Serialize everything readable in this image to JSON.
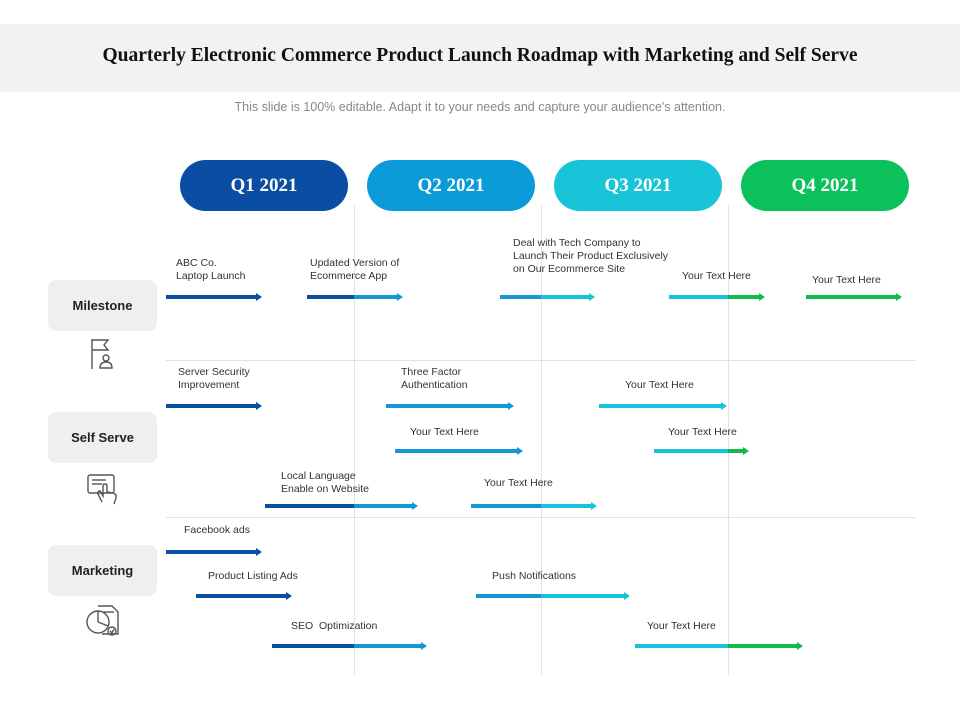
{
  "title": "Quarterly  Electronic Commerce Product Launch Roadmap with Marketing and Self Serve",
  "subtitle": "This slide is 100% editable. Adapt it to your needs and capture your audience's attention.",
  "colors": {
    "q1": "#0a4da2",
    "q2": "#1597d6",
    "q3": "#17c3d8",
    "q4": "#12b94e"
  },
  "quarters": [
    {
      "label": "Q1 2021",
      "color": "#0a4da2"
    },
    {
      "label": "Q2 2021",
      "color": "#0b9bd8"
    },
    {
      "label": "Q3 2021",
      "color": "#18c4d8"
    },
    {
      "label": "Q4 2021",
      "color": "#0cc15b"
    }
  ],
  "categories": [
    {
      "label": "Milestone",
      "icon": "flag-person-icon"
    },
    {
      "label": "Self Serve",
      "icon": "touch-screen-icon"
    },
    {
      "label": "Marketing",
      "icon": "pie-chart-report-icon"
    }
  ],
  "items": [
    {
      "text": "ABC Co.\nLaptop Launch",
      "category": "Milestone",
      "colors": [
        "#0a4da2"
      ]
    },
    {
      "text": "Updated Version of\nEcommerce App",
      "category": "Milestone",
      "colors": [
        "#0a4da2",
        "#1597d6"
      ]
    },
    {
      "text": "Deal with Tech Company to\nLaunch Their Product Exclusively\non Our Ecommerce Site",
      "category": "Milestone",
      "colors": [
        "#1597d6",
        "#17c3d8"
      ]
    },
    {
      "text": "Your Text Here",
      "category": "Milestone",
      "colors": [
        "#17c3d8",
        "#12b94e"
      ]
    },
    {
      "text": "Your Text Here",
      "category": "Milestone",
      "colors": [
        "#12b94e"
      ]
    },
    {
      "text": "Server Security\nImprovement",
      "category": "Self Serve",
      "colors": [
        "#0a4da2"
      ]
    },
    {
      "text": "Three Factor\nAuthentication",
      "category": "Self Serve",
      "colors": [
        "#1597d6"
      ]
    },
    {
      "text": "Your Text Here",
      "category": "Self Serve",
      "colors": [
        "#17c3d8"
      ]
    },
    {
      "text": "Your Text Here",
      "category": "Self Serve",
      "colors": [
        "#1597d6"
      ]
    },
    {
      "text": "Your Text Here",
      "category": "Self Serve",
      "colors": [
        "#17c3d8",
        "#12b94e"
      ]
    },
    {
      "text": "Local Language\nEnable on Website",
      "category": "Self Serve",
      "colors": [
        "#0a4da2",
        "#1597d6"
      ]
    },
    {
      "text": "Your Text Here",
      "category": "Self Serve",
      "colors": [
        "#1597d6",
        "#17c3d8"
      ]
    },
    {
      "text": "Facebook ads",
      "category": "Marketing",
      "colors": [
        "#0a4da2"
      ]
    },
    {
      "text": "Product Listing Ads",
      "category": "Marketing",
      "colors": [
        "#0a4da2"
      ]
    },
    {
      "text": "Push Notifications",
      "category": "Marketing",
      "colors": [
        "#1597d6",
        "#17c3d8"
      ]
    },
    {
      "text": "SEO  Optimization",
      "category": "Marketing",
      "colors": [
        "#0a4da2",
        "#1597d6"
      ]
    },
    {
      "text": "Your Text Here",
      "category": "Marketing",
      "colors": [
        "#17c3d8",
        "#12b94e"
      ]
    }
  ]
}
